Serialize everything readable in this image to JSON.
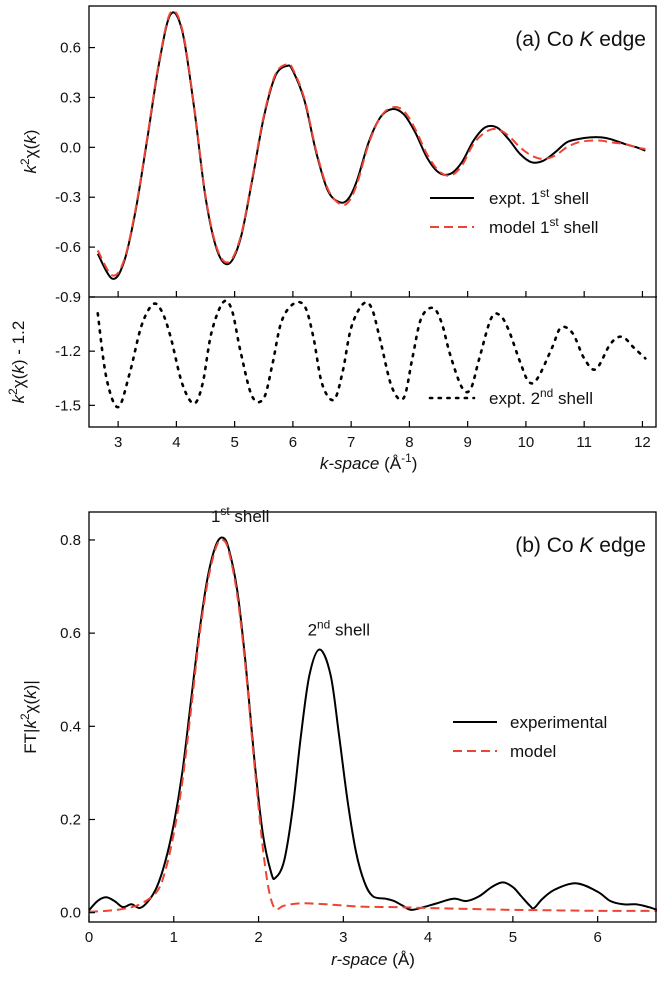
{
  "chart_data": [
    {
      "type": "line",
      "panel_label": "(a) Co K edge",
      "panel_label_parts": [
        "(a)  Co ",
        "K",
        " edge"
      ],
      "xlabel": "k-space (Å-1)",
      "xlabel_parts": [
        "k-space",
        " (Å",
        "-1",
        ")"
      ],
      "xlim": [
        2.5,
        12.25
      ],
      "xticks": [
        3,
        4,
        5,
        6,
        7,
        8,
        9,
        10,
        11,
        12
      ],
      "subplots": [
        {
          "ylabel": "k2χ(k)",
          "ylabel_parts": [
            "k",
            "2",
            "χ(",
            "k",
            ")"
          ],
          "ylim": [
            -0.9,
            0.85
          ],
          "yticks": [
            -0.9,
            -0.6,
            -0.3,
            0.0,
            0.3,
            0.6
          ],
          "legend_position": "center-right",
          "series": [
            {
              "name": "expt. 1st shell",
              "name_parts": [
                "expt. 1",
                "st",
                " shell"
              ],
              "style": "solid",
              "color": "#000000",
              "x": [
                2.65,
                2.9,
                3.1,
                3.3,
                3.5,
                3.7,
                3.9,
                4.1,
                4.3,
                4.5,
                4.7,
                4.9,
                5.1,
                5.3,
                5.5,
                5.7,
                5.9,
                6.0,
                6.2,
                6.4,
                6.6,
                6.8,
                6.95,
                7.1,
                7.3,
                7.5,
                7.7,
                7.9,
                8.1,
                8.3,
                8.5,
                8.7,
                8.9,
                9.1,
                9.3,
                9.5,
                9.7,
                9.9,
                10.1,
                10.3,
                10.5,
                10.7,
                10.9,
                11.1,
                11.3,
                11.45,
                11.7,
                11.9,
                12.05
              ],
              "y": [
                -0.64,
                -0.79,
                -0.69,
                -0.38,
                0.05,
                0.5,
                0.8,
                0.7,
                0.25,
                -0.3,
                -0.62,
                -0.7,
                -0.55,
                -0.2,
                0.18,
                0.43,
                0.49,
                0.46,
                0.28,
                -0.03,
                -0.26,
                -0.33,
                -0.31,
                -0.2,
                0.03,
                0.18,
                0.23,
                0.2,
                0.09,
                -0.06,
                -0.15,
                -0.16,
                -0.09,
                0.04,
                0.12,
                0.12,
                0.05,
                -0.04,
                -0.09,
                -0.08,
                -0.03,
                0.03,
                0.05,
                0.06,
                0.06,
                0.05,
                0.02,
                0.0,
                -0.02
              ]
            },
            {
              "name": "model 1st shell",
              "name_parts": [
                "model 1",
                "st",
                " shell"
              ],
              "style": "dashed",
              "color": "#ee4433",
              "x": [
                2.65,
                2.9,
                3.1,
                3.3,
                3.5,
                3.7,
                3.9,
                4.1,
                4.3,
                4.5,
                4.7,
                4.9,
                5.1,
                5.3,
                5.5,
                5.7,
                5.9,
                6.0,
                6.2,
                6.4,
                6.6,
                6.8,
                6.95,
                7.1,
                7.3,
                7.5,
                7.7,
                7.9,
                8.1,
                8.3,
                8.5,
                8.7,
                8.9,
                9.1,
                9.3,
                9.5,
                9.7,
                9.9,
                10.1,
                10.3,
                10.5,
                10.7,
                10.9,
                11.1,
                11.3,
                11.45,
                11.7,
                11.9,
                12.05
              ],
              "y": [
                -0.62,
                -0.77,
                -0.68,
                -0.37,
                0.06,
                0.51,
                0.81,
                0.71,
                0.26,
                -0.29,
                -0.61,
                -0.69,
                -0.54,
                -0.19,
                0.19,
                0.44,
                0.5,
                0.47,
                0.29,
                -0.02,
                -0.25,
                -0.34,
                -0.33,
                -0.22,
                0.02,
                0.18,
                0.24,
                0.22,
                0.11,
                -0.04,
                -0.14,
                -0.17,
                -0.11,
                0.02,
                0.09,
                0.11,
                0.07,
                0.0,
                -0.05,
                -0.07,
                -0.05,
                0.0,
                0.03,
                0.04,
                0.04,
                0.03,
                0.02,
                0.0,
                -0.01
              ]
            }
          ]
        },
        {
          "ylabel": "k2χ(k) - 1.2",
          "ylabel_parts": [
            "k",
            "2",
            "χ(",
            "k",
            ") - 1.2"
          ],
          "ylim": [
            -1.62,
            -0.9
          ],
          "yticks": [
            -1.5,
            -1.2,
            -0.9
          ],
          "legend_position": "bottom-right",
          "series": [
            {
              "name": "expt. 2nd shell",
              "name_parts": [
                "expt. 2",
                "nd",
                " shell"
              ],
              "style": "dotted",
              "color": "#000000",
              "x": [
                2.65,
                2.8,
                3.0,
                3.2,
                3.4,
                3.6,
                3.75,
                3.9,
                4.1,
                4.3,
                4.45,
                4.6,
                4.8,
                4.95,
                5.1,
                5.3,
                5.5,
                5.65,
                5.8,
                6.0,
                6.2,
                6.35,
                6.5,
                6.7,
                6.85,
                7.0,
                7.2,
                7.35,
                7.5,
                7.7,
                7.9,
                8.05,
                8.2,
                8.4,
                8.55,
                8.7,
                8.9,
                9.05,
                9.2,
                9.4,
                9.55,
                9.7,
                9.9,
                10.05,
                10.2,
                10.45,
                10.6,
                10.8,
                11.0,
                11.2,
                11.45,
                11.65,
                11.85,
                12.05
              ],
              "y": [
                -0.99,
                -1.35,
                -1.51,
                -1.32,
                -1.06,
                -0.94,
                -0.98,
                -1.12,
                -1.38,
                -1.49,
                -1.38,
                -1.1,
                -0.93,
                -0.97,
                -1.2,
                -1.45,
                -1.46,
                -1.27,
                -1.04,
                -0.94,
                -0.95,
                -1.12,
                -1.38,
                -1.47,
                -1.32,
                -1.07,
                -0.94,
                -0.96,
                -1.14,
                -1.4,
                -1.46,
                -1.24,
                -1.02,
                -0.96,
                -1.04,
                -1.22,
                -1.4,
                -1.41,
                -1.24,
                -1.02,
                -1.0,
                -1.08,
                -1.26,
                -1.37,
                -1.35,
                -1.18,
                -1.07,
                -1.1,
                -1.24,
                -1.3,
                -1.16,
                -1.12,
                -1.18,
                -1.24
              ]
            }
          ]
        }
      ]
    },
    {
      "type": "line",
      "panel_label": "(b) Co K edge",
      "panel_label_parts": [
        "(b)  Co ",
        "K",
        " edge"
      ],
      "xlabel": "r-space (Å)",
      "xlabel_parts": [
        "r-space",
        " (Å)"
      ],
      "ylabel": "FT|k2χ(k)|",
      "ylabel_parts": [
        "FT|",
        "k",
        "2",
        "χ(",
        "k",
        ")|"
      ],
      "xlim": [
        0,
        6.7
      ],
      "xticks": [
        0,
        1,
        2,
        3,
        4,
        5,
        6
      ],
      "ylim": [
        -0.02,
        0.86
      ],
      "yticks": [
        0.0,
        0.2,
        0.4,
        0.6,
        0.8
      ],
      "legend_position": "center-right",
      "annotations": [
        {
          "text": "1st shell",
          "parts": [
            "1",
            "st",
            " shell"
          ],
          "x": 1.58,
          "y": 0.8
        },
        {
          "text": "2nd shell",
          "parts": [
            "2",
            "nd",
            " shell"
          ],
          "x": 2.72,
          "y": 0.565
        }
      ],
      "series": [
        {
          "name": "experimental",
          "style": "solid",
          "color": "#000000",
          "x": [
            0.0,
            0.1,
            0.2,
            0.3,
            0.4,
            0.5,
            0.6,
            0.7,
            0.8,
            0.9,
            1.0,
            1.1,
            1.2,
            1.3,
            1.4,
            1.5,
            1.58,
            1.65,
            1.75,
            1.85,
            1.95,
            2.05,
            2.15,
            2.2,
            2.3,
            2.4,
            2.5,
            2.6,
            2.72,
            2.85,
            2.95,
            3.05,
            3.15,
            3.25,
            3.35,
            3.5,
            3.6,
            3.7,
            3.8,
            3.95,
            4.1,
            4.3,
            4.45,
            4.6,
            4.75,
            4.88,
            5.0,
            5.1,
            5.2,
            5.25,
            5.35,
            5.5,
            5.75,
            6.0,
            6.15,
            6.3,
            6.45,
            6.6,
            6.7
          ],
          "y": [
            0.005,
            0.025,
            0.033,
            0.025,
            0.012,
            0.018,
            0.01,
            0.025,
            0.055,
            0.11,
            0.19,
            0.3,
            0.45,
            0.6,
            0.72,
            0.79,
            0.805,
            0.78,
            0.69,
            0.53,
            0.33,
            0.17,
            0.085,
            0.075,
            0.11,
            0.22,
            0.38,
            0.51,
            0.565,
            0.51,
            0.38,
            0.24,
            0.13,
            0.065,
            0.035,
            0.03,
            0.025,
            0.015,
            0.006,
            0.012,
            0.02,
            0.03,
            0.025,
            0.035,
            0.055,
            0.065,
            0.055,
            0.035,
            0.015,
            0.01,
            0.03,
            0.05,
            0.063,
            0.045,
            0.025,
            0.018,
            0.018,
            0.012,
            0.006
          ]
        },
        {
          "name": "model",
          "style": "dashed",
          "color": "#ee4433",
          "x": [
            0.0,
            0.2,
            0.4,
            0.6,
            0.8,
            0.9,
            1.0,
            1.1,
            1.2,
            1.3,
            1.4,
            1.5,
            1.58,
            1.65,
            1.75,
            1.85,
            1.95,
            2.05,
            2.12,
            2.18,
            2.23,
            2.3,
            2.5,
            2.8,
            3.2,
            3.6,
            4.0,
            4.5,
            5.0,
            5.5,
            6.0,
            6.5,
            6.7
          ],
          "y": [
            0.002,
            0.004,
            0.008,
            0.018,
            0.045,
            0.09,
            0.17,
            0.28,
            0.43,
            0.59,
            0.71,
            0.785,
            0.8,
            0.775,
            0.68,
            0.52,
            0.32,
            0.14,
            0.05,
            0.012,
            0.008,
            0.015,
            0.02,
            0.018,
            0.013,
            0.012,
            0.01,
            0.008,
            0.006,
            0.005,
            0.004,
            0.004,
            0.004
          ]
        }
      ]
    }
  ]
}
